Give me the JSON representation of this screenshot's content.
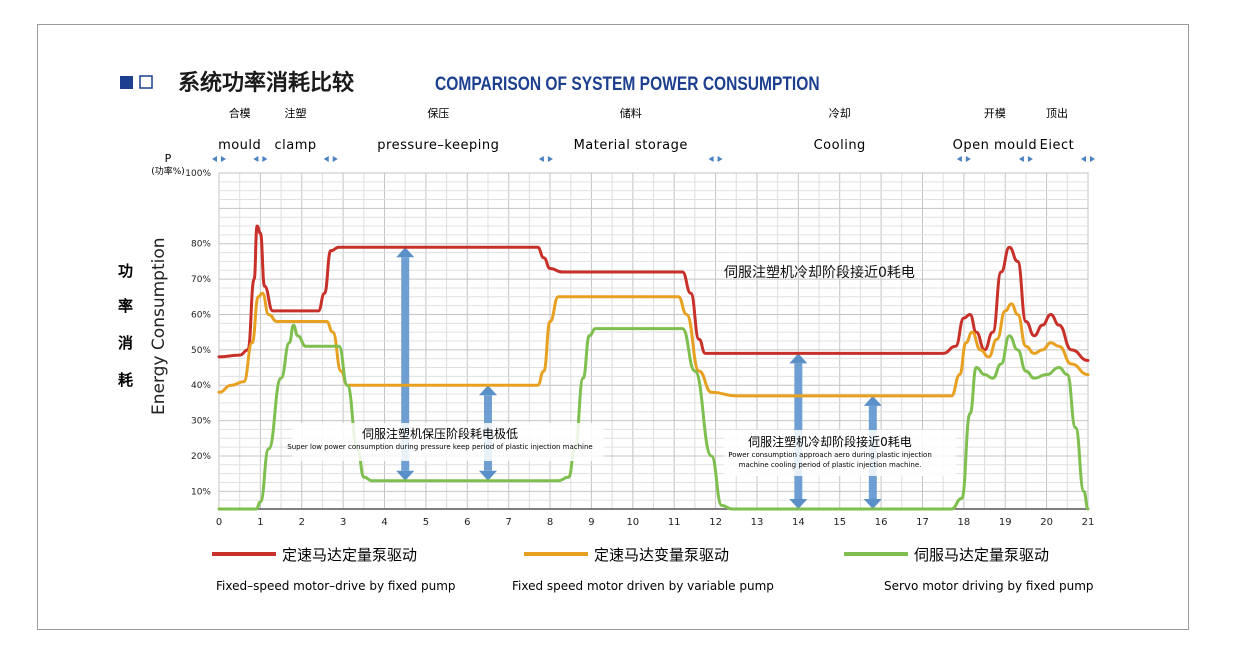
{
  "header": {
    "title_cn": "系统功率消耗比较",
    "title_en": "COMPARISON OF SYSTEM POWER CONSUMPTION",
    "square_filled_color": "#1c3f8f"
  },
  "phases": [
    {
      "cn": "合模",
      "en": "mould",
      "start": 0,
      "end": 1
    },
    {
      "cn": "注塑",
      "en": "clamp",
      "start": 1,
      "end": 2.7
    },
    {
      "cn": "保压",
      "en": "pressure–keeping",
      "start": 2.7,
      "end": 7.9
    },
    {
      "cn": "储料",
      "en": "Material storage",
      "start": 7.9,
      "end": 12
    },
    {
      "cn": "冷却",
      "en": "Cooling",
      "start": 12,
      "end": 18
    },
    {
      "cn": "开模",
      "en": "Open mould",
      "start": 18,
      "end": 19.5
    },
    {
      "cn": "顶出",
      "en": "Eiect",
      "start": 19.5,
      "end": 21
    }
  ],
  "axes": {
    "y_top_label": "P",
    "y_unit": "(功率%)",
    "y_label_cn": [
      "功",
      "率",
      "消",
      "耗"
    ],
    "y_label_en": "Energy Consumption"
  },
  "annotations": {
    "cooling_note": "伺服注塑机冷却阶段接近0耗电",
    "hold_box_cn": "伺服注塑机保压阶段耗电极低",
    "hold_box_en": "Super low power consumption during pressure keep period of plastic injection machine",
    "cool_box_cn": "伺服注塑机冷却阶段接近0耗电",
    "cool_box_en_1": "Power consumption approach aero during plastic injection",
    "cool_box_en_2": "machine cooling period of plastic injection machine."
  },
  "legend": [
    {
      "cn": "定速马达定量泵驱动",
      "en": "Fixed–speed motor–drive by fixed pump",
      "color": "#c8302a"
    },
    {
      "cn": "定速马达变量泵驱动",
      "en": "Fixed speed motor driven by variable pump",
      "color": "#e8a020"
    },
    {
      "cn": "伺服马达定量泵驱动",
      "en": "Servo motor driving by fixed pump",
      "color": "#7fbf4f"
    }
  ],
  "chart_data": {
    "type": "line",
    "title": "COMPARISON OF SYSTEM POWER CONSUMPTION",
    "xlim": [
      0,
      21
    ],
    "ylim": [
      5,
      100
    ],
    "x_ticks": [
      0,
      1,
      2,
      3,
      4,
      5,
      6,
      7,
      8,
      9,
      10,
      11,
      12,
      13,
      14,
      15,
      16,
      17,
      18,
      19,
      20,
      21
    ],
    "y_ticks": [
      {
        "value": 10,
        "label": "10%"
      },
      {
        "value": 20,
        "label": "20%"
      },
      {
        "value": 30,
        "label": "30%"
      },
      {
        "value": 40,
        "label": "40%"
      },
      {
        "value": 50,
        "label": "50%"
      },
      {
        "value": 60,
        "label": "60%"
      },
      {
        "value": 70,
        "label": "70%"
      },
      {
        "value": 80,
        "label": "80%"
      },
      {
        "value": 100,
        "label": "100%"
      }
    ],
    "grid": true,
    "series": [
      {
        "name": "定速马达定量泵驱动",
        "color": "#c8302a",
        "points": [
          [
            0,
            48
          ],
          [
            0.5,
            48.5
          ],
          [
            0.7,
            50
          ],
          [
            0.85,
            70
          ],
          [
            0.92,
            85
          ],
          [
            1.0,
            83
          ],
          [
            1.1,
            68
          ],
          [
            1.3,
            61
          ],
          [
            1.7,
            61
          ],
          [
            2.4,
            61
          ],
          [
            2.55,
            66
          ],
          [
            2.7,
            78
          ],
          [
            2.9,
            79
          ],
          [
            5,
            79
          ],
          [
            7.7,
            79
          ],
          [
            7.85,
            76
          ],
          [
            8.0,
            73
          ],
          [
            8.3,
            72
          ],
          [
            10,
            72
          ],
          [
            11.2,
            72
          ],
          [
            11.4,
            66
          ],
          [
            11.6,
            53
          ],
          [
            11.75,
            49
          ],
          [
            12.5,
            49
          ],
          [
            15,
            49
          ],
          [
            17.5,
            49
          ],
          [
            17.8,
            51
          ],
          [
            18.0,
            59
          ],
          [
            18.15,
            60
          ],
          [
            18.3,
            55
          ],
          [
            18.5,
            50
          ],
          [
            18.7,
            55
          ],
          [
            18.9,
            72
          ],
          [
            19.1,
            79
          ],
          [
            19.3,
            75
          ],
          [
            19.5,
            58
          ],
          [
            19.7,
            54
          ],
          [
            19.9,
            57
          ],
          [
            20.1,
            60
          ],
          [
            20.3,
            57
          ],
          [
            20.6,
            50
          ],
          [
            21,
            47
          ]
        ]
      },
      {
        "name": "定速马达变量泵驱动",
        "color": "#e8a020",
        "points": [
          [
            0,
            38
          ],
          [
            0.3,
            40
          ],
          [
            0.6,
            41
          ],
          [
            0.8,
            52
          ],
          [
            0.95,
            65
          ],
          [
            1.05,
            66
          ],
          [
            1.2,
            60
          ],
          [
            1.4,
            58
          ],
          [
            2.6,
            58
          ],
          [
            2.75,
            55
          ],
          [
            2.95,
            44
          ],
          [
            3.1,
            40
          ],
          [
            5,
            40
          ],
          [
            7.7,
            40
          ],
          [
            7.85,
            44
          ],
          [
            8.0,
            58
          ],
          [
            8.2,
            65
          ],
          [
            10,
            65
          ],
          [
            11.1,
            65
          ],
          [
            11.3,
            60
          ],
          [
            11.6,
            44
          ],
          [
            11.9,
            38
          ],
          [
            12.5,
            37
          ],
          [
            15,
            37
          ],
          [
            17.7,
            37
          ],
          [
            17.9,
            43
          ],
          [
            18.05,
            52
          ],
          [
            18.2,
            55
          ],
          [
            18.4,
            50
          ],
          [
            18.6,
            48
          ],
          [
            18.8,
            53
          ],
          [
            19.0,
            61
          ],
          [
            19.15,
            63
          ],
          [
            19.3,
            60
          ],
          [
            19.5,
            51
          ],
          [
            19.7,
            49
          ],
          [
            19.9,
            50
          ],
          [
            20.1,
            52
          ],
          [
            20.3,
            51
          ],
          [
            20.6,
            46
          ],
          [
            21,
            43
          ]
        ]
      },
      {
        "name": "伺服马达定量泵驱动",
        "color": "#7fbf4f",
        "points": [
          [
            0,
            5
          ],
          [
            0.9,
            5
          ],
          [
            1.0,
            7
          ],
          [
            1.2,
            22
          ],
          [
            1.5,
            42
          ],
          [
            1.7,
            52
          ],
          [
            1.8,
            57
          ],
          [
            1.9,
            54
          ],
          [
            2.1,
            51
          ],
          [
            2.6,
            51
          ],
          [
            2.9,
            51
          ],
          [
            3.1,
            40
          ],
          [
            3.35,
            22
          ],
          [
            3.5,
            14
          ],
          [
            3.7,
            13
          ],
          [
            5,
            13
          ],
          [
            8.2,
            13
          ],
          [
            8.45,
            14
          ],
          [
            8.6,
            22
          ],
          [
            8.8,
            42
          ],
          [
            8.95,
            54
          ],
          [
            9.1,
            56
          ],
          [
            11.2,
            56
          ],
          [
            11.5,
            44
          ],
          [
            11.9,
            20
          ],
          [
            12.15,
            6
          ],
          [
            12.4,
            5
          ],
          [
            15,
            5
          ],
          [
            17.7,
            5
          ],
          [
            17.95,
            8
          ],
          [
            18.15,
            32
          ],
          [
            18.3,
            45
          ],
          [
            18.5,
            43
          ],
          [
            18.7,
            42
          ],
          [
            18.9,
            46
          ],
          [
            19.1,
            54
          ],
          [
            19.3,
            50
          ],
          [
            19.5,
            44
          ],
          [
            19.7,
            42
          ],
          [
            20.0,
            43
          ],
          [
            20.3,
            45
          ],
          [
            20.5,
            43
          ],
          [
            20.7,
            28
          ],
          [
            20.9,
            10
          ],
          [
            21,
            5
          ]
        ]
      }
    ]
  }
}
